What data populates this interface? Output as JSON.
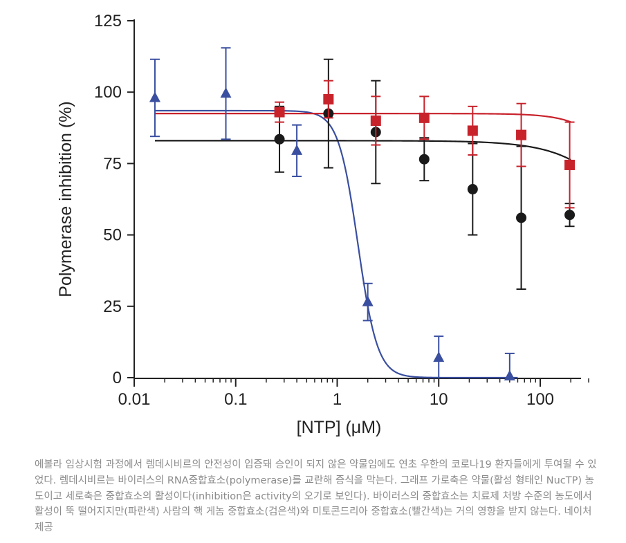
{
  "chart_data": {
    "type": "scatter",
    "xlabel": "[NTP] (μM)",
    "ylabel": "Polymerase inhibition (%)",
    "xscale": "log",
    "xlim": [
      0.01,
      300
    ],
    "ylim": [
      0,
      125
    ],
    "xticks": [
      0.01,
      0.1,
      1,
      10,
      100
    ],
    "xtick_labels": [
      "0.01",
      "0.1",
      "1",
      "10",
      "100"
    ],
    "yticks": [
      0,
      25,
      50,
      75,
      100,
      125
    ],
    "ytick_labels": [
      "0",
      "25",
      "50",
      "75",
      "100",
      "125"
    ],
    "grid": false,
    "series": [
      {
        "color": "#3a4fa0",
        "marker": "triangle",
        "x": [
          0.016,
          0.08,
          0.4,
          2.0,
          10,
          50
        ],
        "y": [
          98,
          99.5,
          79.5,
          26.5,
          7,
          0.5
        ],
        "err": [
          13.5,
          16,
          9,
          6.5,
          7.5,
          8
        ],
        "fit": {
          "top": 93.5,
          "ec50": 1.6,
          "hill": 4.5
        }
      },
      {
        "color": "#1a1a1a",
        "marker": "circle",
        "x": [
          0.27,
          0.82,
          2.4,
          7.2,
          21.6,
          65,
          195
        ],
        "y": [
          83.5,
          92.5,
          86,
          76.5,
          66,
          56,
          57
        ],
        "err": [
          11.5,
          19,
          18,
          7.5,
          16,
          25,
          4
        ],
        "fit": {
          "top": 83,
          "ec50": 1300,
          "hill": 1.3
        }
      },
      {
        "color": "#c8222b",
        "marker": "square",
        "x": [
          0.27,
          0.82,
          2.4,
          7.2,
          21.6,
          65,
          195
        ],
        "y": [
          93,
          97.5,
          90,
          91,
          86.5,
          85,
          74.5
        ],
        "err": [
          3.5,
          6.5,
          8.5,
          7.5,
          8.5,
          11,
          15
        ],
        "fit": {
          "top": 92.5,
          "ec50": 1100,
          "hill": 2.0
        }
      }
    ]
  },
  "caption": "에볼라 임상시험 과정에서 렘데시비르의 안전성이 입증돼 승인이 되지 않은 약물임에도 연초 우한의 코로나19 환자들에게 투여될 수 있었다. 렘데시비르는 바이러스의 RNA중합효소(polymerase)를 교란해 증식을 막는다. 그래프 가로축은 약물(활성 형태인 NucTP) 농도이고 세로축은 중합효소의 활성이다(inhibition은 activity의 오기로 보인다). 바이러스의 중합효소는 치료제 처방 수준의 농도에서 활성이 뚝 떨어지지만(파란색) 사람의 핵 게놈 중합효소(검은색)와 미토콘드리아 중합효소(빨간색)는 거의 영향을 받지 않는다. 네이처 제공"
}
